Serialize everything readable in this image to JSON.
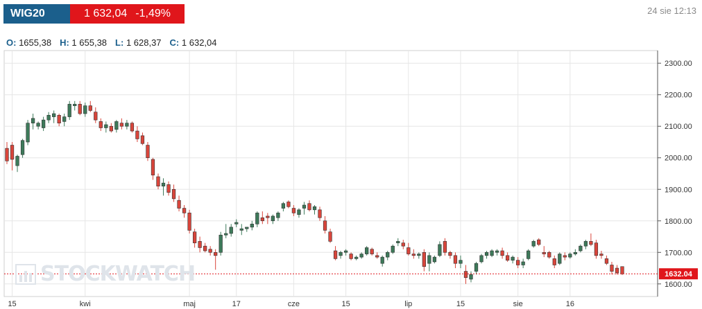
{
  "header": {
    "symbol": "WIG20",
    "price": "1 632,04",
    "change": "-1,49%",
    "timestamp": "24 sie 12:13"
  },
  "ohlc": {
    "o_label": "O:",
    "o_value": "1655,38",
    "h_label": "H:",
    "h_value": "1 655,38",
    "l_label": "L:",
    "l_value": "1 628,37",
    "c_label": "C:",
    "c_value": "1 632,04"
  },
  "watermark": {
    "text": "STOCKWATCH",
    "icon": "bar-chart-icon"
  },
  "colors": {
    "up": "#3d7a5a",
    "down": "#d9453b",
    "last_price": "#e0161b",
    "grid": "#e6e6e6"
  },
  "chart_data": {
    "type": "candlestick",
    "y_axis": {
      "min": 1560,
      "max": 2340,
      "ticks": [
        "2300.00",
        "2200.00",
        "2100.00",
        "2000.00",
        "1900.00",
        "1800.00",
        "1700.00",
        "1600.00"
      ],
      "tick_values": [
        2300,
        2200,
        2100,
        2000,
        1900,
        1800,
        1700,
        1600
      ],
      "position": "right"
    },
    "x_ticks": [
      {
        "label": "15",
        "index": 1
      },
      {
        "label": "kwi",
        "index": 15
      },
      {
        "label": "maj",
        "index": 35
      },
      {
        "label": "17",
        "index": 44
      },
      {
        "label": "cze",
        "index": 55
      },
      {
        "label": "15",
        "index": 65
      },
      {
        "label": "lip",
        "index": 77
      },
      {
        "label": "15",
        "index": 87
      },
      {
        "label": "sie",
        "index": 98
      },
      {
        "label": "16",
        "index": 108
      }
    ],
    "last_price": {
      "value": 1632.04,
      "label": "1632.04"
    },
    "grid": true,
    "candles": [
      [
        2030,
        2050,
        1980,
        1990
      ],
      [
        2040,
        2050,
        1960,
        1995
      ],
      [
        1975,
        2010,
        1955,
        2005
      ],
      [
        2010,
        2060,
        2000,
        2055
      ],
      [
        2050,
        2120,
        2040,
        2110
      ],
      [
        2110,
        2140,
        2090,
        2125
      ],
      [
        2100,
        2115,
        2090,
        2110
      ],
      [
        2095,
        2130,
        2085,
        2120
      ],
      [
        2120,
        2145,
        2110,
        2135
      ],
      [
        2130,
        2150,
        2110,
        2140
      ],
      [
        2135,
        2140,
        2100,
        2110
      ],
      [
        2115,
        2140,
        2100,
        2130
      ],
      [
        2130,
        2180,
        2120,
        2170
      ],
      [
        2165,
        2180,
        2150,
        2170
      ],
      [
        2170,
        2180,
        2135,
        2140
      ],
      [
        2140,
        2175,
        2130,
        2165
      ],
      [
        2165,
        2180,
        2145,
        2150
      ],
      [
        2145,
        2160,
        2110,
        2120
      ],
      [
        2115,
        2125,
        2085,
        2095
      ],
      [
        2095,
        2115,
        2080,
        2105
      ],
      [
        2100,
        2110,
        2080,
        2085
      ],
      [
        2090,
        2120,
        2080,
        2115
      ],
      [
        2110,
        2125,
        2090,
        2100
      ],
      [
        2100,
        2120,
        2090,
        2110
      ],
      [
        2110,
        2115,
        2080,
        2085
      ],
      [
        2085,
        2100,
        2050,
        2060
      ],
      [
        2070,
        2080,
        2040,
        2045
      ],
      [
        2040,
        2050,
        1990,
        2000
      ],
      [
        1995,
        2000,
        1930,
        1945
      ],
      [
        1940,
        1950,
        1900,
        1910
      ],
      [
        1910,
        1935,
        1880,
        1920
      ],
      [
        1915,
        1925,
        1880,
        1890
      ],
      [
        1900,
        1915,
        1860,
        1870
      ],
      [
        1865,
        1880,
        1830,
        1840
      ],
      [
        1840,
        1850,
        1810,
        1825
      ],
      [
        1825,
        1835,
        1760,
        1770
      ],
      [
        1765,
        1775,
        1715,
        1730
      ],
      [
        1735,
        1750,
        1700,
        1715
      ],
      [
        1720,
        1730,
        1700,
        1705
      ],
      [
        1710,
        1720,
        1690,
        1700
      ],
      [
        1700,
        1710,
        1645,
        1690
      ],
      [
        1700,
        1765,
        1690,
        1755
      ],
      [
        1755,
        1790,
        1745,
        1760
      ],
      [
        1760,
        1790,
        1750,
        1780
      ],
      [
        1790,
        1805,
        1780,
        1795
      ],
      [
        1770,
        1790,
        1755,
        1775
      ],
      [
        1775,
        1780,
        1765,
        1780
      ],
      [
        1780,
        1800,
        1770,
        1790
      ],
      [
        1790,
        1830,
        1780,
        1825
      ],
      [
        1810,
        1830,
        1790,
        1800
      ],
      [
        1815,
        1825,
        1790,
        1810
      ],
      [
        1800,
        1820,
        1790,
        1815
      ],
      [
        1810,
        1830,
        1800,
        1825
      ],
      [
        1840,
        1860,
        1830,
        1855
      ],
      [
        1860,
        1865,
        1840,
        1845
      ],
      [
        1840,
        1850,
        1815,
        1825
      ],
      [
        1820,
        1840,
        1810,
        1835
      ],
      [
        1840,
        1860,
        1820,
        1850
      ],
      [
        1855,
        1865,
        1830,
        1835
      ],
      [
        1835,
        1850,
        1820,
        1845
      ],
      [
        1835,
        1845,
        1800,
        1810
      ],
      [
        1800,
        1815,
        1760,
        1770
      ],
      [
        1765,
        1775,
        1730,
        1735
      ],
      [
        1705,
        1720,
        1675,
        1680
      ],
      [
        1690,
        1705,
        1680,
        1700
      ],
      [
        1700,
        1710,
        1690,
        1705
      ],
      [
        1695,
        1700,
        1675,
        1680
      ],
      [
        1680,
        1690,
        1675,
        1685
      ],
      [
        1685,
        1700,
        1680,
        1695
      ],
      [
        1695,
        1720,
        1690,
        1715
      ],
      [
        1710,
        1715,
        1690,
        1695
      ],
      [
        1690,
        1700,
        1680,
        1685
      ],
      [
        1665,
        1690,
        1655,
        1685
      ],
      [
        1685,
        1705,
        1675,
        1700
      ],
      [
        1700,
        1725,
        1695,
        1720
      ],
      [
        1730,
        1745,
        1720,
        1735
      ],
      [
        1730,
        1740,
        1710,
        1720
      ],
      [
        1715,
        1730,
        1690,
        1695
      ],
      [
        1695,
        1710,
        1680,
        1690
      ],
      [
        1690,
        1700,
        1680,
        1695
      ],
      [
        1700,
        1710,
        1640,
        1655
      ],
      [
        1665,
        1700,
        1640,
        1690
      ],
      [
        1670,
        1690,
        1665,
        1685
      ],
      [
        1690,
        1735,
        1685,
        1725
      ],
      [
        1735,
        1745,
        1690,
        1700
      ],
      [
        1700,
        1705,
        1680,
        1690
      ],
      [
        1690,
        1700,
        1650,
        1665
      ],
      [
        1665,
        1690,
        1650,
        1675
      ],
      [
        1640,
        1660,
        1600,
        1620
      ],
      [
        1615,
        1640,
        1605,
        1630
      ],
      [
        1640,
        1670,
        1630,
        1665
      ],
      [
        1670,
        1695,
        1665,
        1690
      ],
      [
        1690,
        1705,
        1680,
        1700
      ],
      [
        1690,
        1710,
        1685,
        1705
      ],
      [
        1700,
        1710,
        1690,
        1705
      ],
      [
        1705,
        1715,
        1680,
        1690
      ],
      [
        1690,
        1700,
        1670,
        1675
      ],
      [
        1675,
        1690,
        1665,
        1685
      ],
      [
        1675,
        1685,
        1650,
        1660
      ],
      [
        1660,
        1680,
        1650,
        1670
      ],
      [
        1680,
        1710,
        1675,
        1705
      ],
      [
        1720,
        1740,
        1715,
        1735
      ],
      [
        1740,
        1745,
        1720,
        1725
      ],
      [
        1700,
        1720,
        1685,
        1695
      ],
      [
        1700,
        1705,
        1680,
        1685
      ],
      [
        1680,
        1690,
        1650,
        1660
      ],
      [
        1665,
        1700,
        1660,
        1695
      ],
      [
        1690,
        1700,
        1675,
        1685
      ],
      [
        1685,
        1700,
        1680,
        1695
      ],
      [
        1695,
        1710,
        1690,
        1700
      ],
      [
        1705,
        1725,
        1700,
        1720
      ],
      [
        1720,
        1740,
        1710,
        1735
      ],
      [
        1735,
        1760,
        1720,
        1725
      ],
      [
        1730,
        1740,
        1680,
        1690
      ],
      [
        1695,
        1705,
        1680,
        1690
      ],
      [
        1680,
        1690,
        1660,
        1665
      ],
      [
        1660,
        1670,
        1630,
        1640
      ],
      [
        1650,
        1660,
        1630,
        1635
      ],
      [
        1655,
        1655,
        1628,
        1632
      ]
    ]
  }
}
